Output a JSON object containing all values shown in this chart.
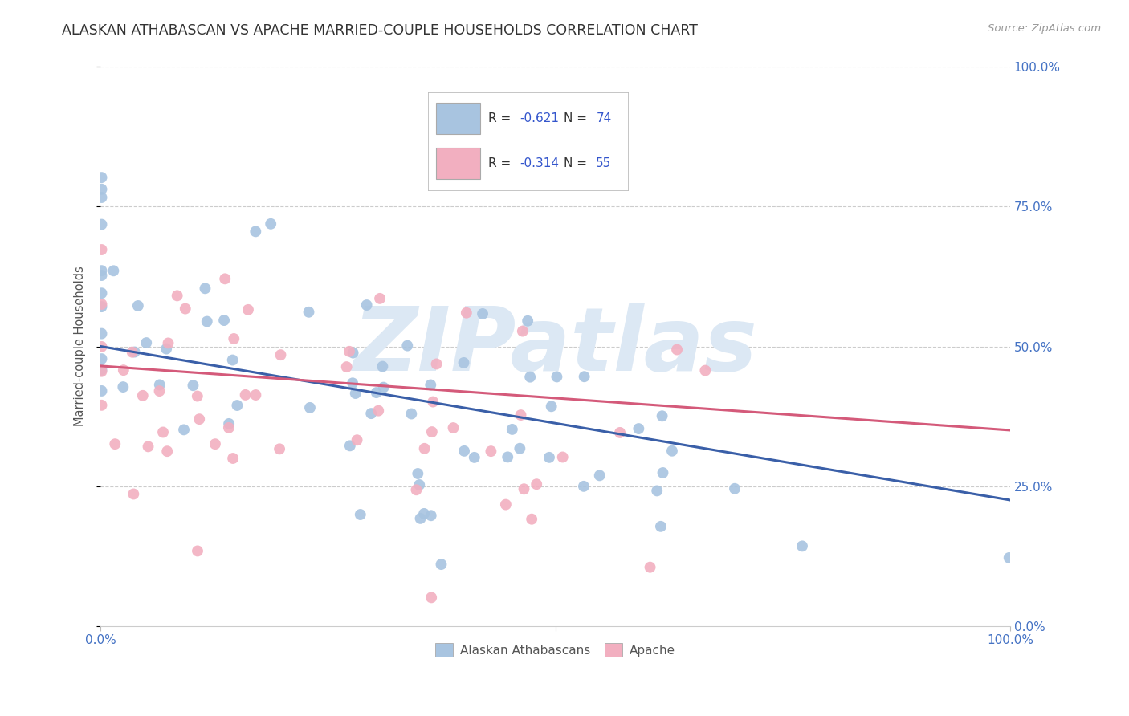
{
  "title": "ALASKAN ATHABASCAN VS APACHE MARRIED-COUPLE HOUSEHOLDS CORRELATION CHART",
  "source": "Source: ZipAtlas.com",
  "ylabel": "Married-couple Households",
  "ytick_labels": [
    "0.0%",
    "25.0%",
    "50.0%",
    "75.0%",
    "100.0%"
  ],
  "ytick_values": [
    0.0,
    0.25,
    0.5,
    0.75,
    1.0
  ],
  "blue_scatter_color": "#a8c4e0",
  "pink_scatter_color": "#f2afc0",
  "blue_line_color": "#3a5fa8",
  "pink_line_color": "#d45a7a",
  "watermark": "ZIPatlas",
  "watermark_color": "#dce8f4",
  "background_color": "#ffffff",
  "grid_color": "#cccccc",
  "R_blue": -0.621,
  "N_blue": 74,
  "R_pink": -0.314,
  "N_pink": 55,
  "title_color": "#333333",
  "axis_label_color": "#4472c4",
  "legend_R_N_color": "#3355cc",
  "blue_line_intercept": 0.5,
  "blue_line_slope": -0.275,
  "pink_line_intercept": 0.465,
  "pink_line_slope": -0.115
}
